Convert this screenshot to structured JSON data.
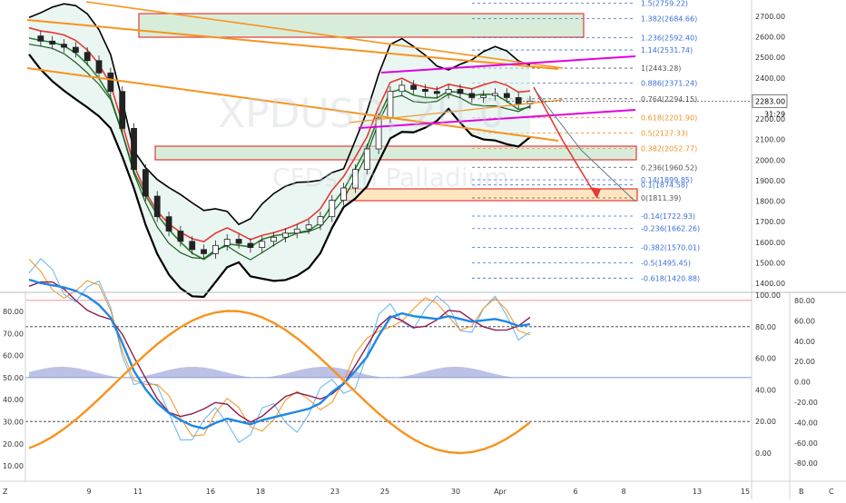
{
  "watermark": {
    "symbol": "XPDUSD, 2H 0",
    "description": "CFDs on Palladium"
  },
  "price_panel": {
    "price_axis_ticks": [
      "2700.00",
      "2600.00",
      "2500.00",
      "2400.00",
      "2300.00",
      "2200.00",
      "2100.00",
      "2000.00",
      "1900.00",
      "1800.00",
      "1700.00",
      "1600.00",
      "1500.00",
      "1400.00"
    ],
    "current_price": "2283.00",
    "countdown": "31:29"
  },
  "fib_levels": [
    {
      "label": "1.5(2759.22)",
      "value": 2759.22,
      "color": "#3a6fd8"
    },
    {
      "label": "1.382(2684.66)",
      "value": 2684.66,
      "color": "#3a6fd8"
    },
    {
      "label": "1.236(2592.40)",
      "value": 2592.4,
      "color": "#3a6fd8"
    },
    {
      "label": "1.14(2531.74)",
      "value": 2531.74,
      "color": "#3a6fd8"
    },
    {
      "label": "1(2443.28)",
      "value": 2443.28,
      "color": "#555555"
    },
    {
      "label": "0.886(2371.24)",
      "value": 2371.24,
      "color": "#3a6fd8"
    },
    {
      "label": "0.764(2294.15)",
      "value": 2294.15,
      "color": "#555555"
    },
    {
      "label": "0.618(2201.90)",
      "value": 2201.9,
      "color": "#f0932b"
    },
    {
      "label": "0.5(2127.33)",
      "value": 2127.33,
      "color": "#f0932b"
    },
    {
      "label": "0.382(2052.77)",
      "value": 2052.77,
      "color": "#f0932b"
    },
    {
      "label": "0.236(1960.52)",
      "value": 1960.52,
      "color": "#555555"
    },
    {
      "label": "0.14(1899.85)",
      "value": 1899.85,
      "color": "#3a6fd8"
    },
    {
      "label": "0.1(1874.58)",
      "value": 1874.58,
      "color": "#3a6fd8"
    },
    {
      "label": "0(1811.39)",
      "value": 1811.39,
      "color": "#555555"
    },
    {
      "label": "-0.14(1722.93)",
      "value": 1722.93,
      "color": "#3a6fd8"
    },
    {
      "label": "-0.236(1662.26)",
      "value": 1662.26,
      "color": "#3a6fd8"
    },
    {
      "label": "-0.382(1570.01)",
      "value": 1570.01,
      "color": "#3a6fd8"
    },
    {
      "label": "-0.5(1495.45)",
      "value": 1495.45,
      "color": "#3a6fd8"
    },
    {
      "label": "-0.618(1420.88)",
      "value": 1420.88,
      "color": "#3a6fd8"
    }
  ],
  "osc_left_axis": [
    "80.00",
    "70.00",
    "60.00",
    "50.00",
    "40.00",
    "30.00",
    "20.00",
    "10.00"
  ],
  "osc_mid_axis": [
    "100.00",
    "80.00",
    "60.00",
    "40.00",
    "20.00",
    "0.00"
  ],
  "osc_right_axis": [
    "80.00",
    "60.00",
    "40.00",
    "20.00",
    "0.00",
    "-20.00",
    "-40.00",
    "-60.00",
    "-80.00"
  ],
  "time_axis": [
    "9",
    "11",
    "16",
    "18",
    "23",
    "25",
    "30",
    "Apr",
    "6",
    "8",
    "13",
    "15"
  ],
  "corner_labels": [
    "Z",
    "B",
    "C"
  ],
  "colors": {
    "orange": "#f7931e",
    "magenta": "#e100e1",
    "green": "#2e7d32",
    "red": "#e53935",
    "blue_line": "#1e88e5",
    "light_blue": "#64b5f6",
    "maroon": "#8e1b4e",
    "zone_green": "#c8e6c9",
    "zone_orange": "#ffe0b2",
    "band_fill": "#d9efe7"
  },
  "chart_data": {
    "type": "candlestick",
    "title": "",
    "symbol": "XPDUSD",
    "timeframe": "2H",
    "ylim": [
      1380,
      2790
    ],
    "x_ticks": [
      "9",
      "11",
      "16",
      "18",
      "23",
      "25",
      "30",
      "Apr",
      "6",
      "8",
      "13",
      "15"
    ],
    "close_path": [
      2600,
      2575,
      2560,
      2545,
      2520,
      2480,
      2420,
      2330,
      2150,
      1950,
      1820,
      1720,
      1650,
      1600,
      1560,
      1540,
      1580,
      1610,
      1590,
      1570,
      1600,
      1620,
      1640,
      1660,
      1680,
      1720,
      1800,
      1860,
      1950,
      2050,
      2200,
      2330,
      2360,
      2340,
      2330,
      2320,
      2340,
      2320,
      2300,
      2310,
      2320,
      2300,
      2270,
      2283
    ],
    "current_price": 2283.0,
    "oscillator_right_scale": [
      -80,
      80
    ],
    "oscillator_mid_scale": [
      0,
      100
    ],
    "oscillator_left_scale": [
      10,
      80
    ]
  }
}
